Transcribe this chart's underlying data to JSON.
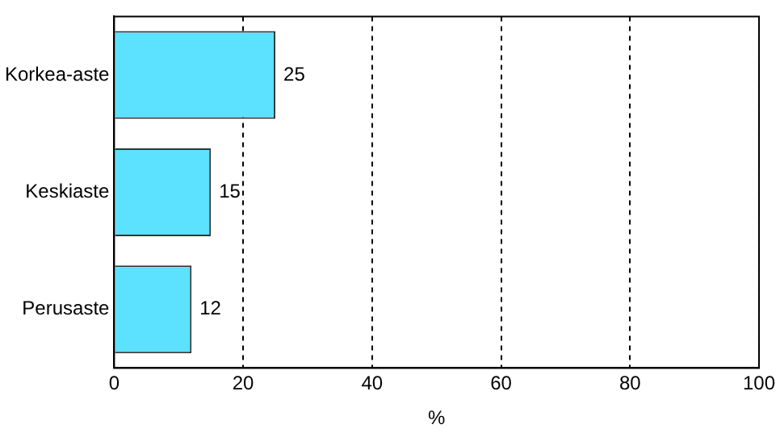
{
  "chart_data": {
    "type": "bar",
    "orientation": "horizontal",
    "xlabel": "%",
    "categories": [
      "Korkea-aste",
      "Keskiaste",
      "Perusaste"
    ],
    "values": [
      25,
      15,
      12
    ],
    "color": "#5ce1ff",
    "xlim": [
      0,
      100
    ],
    "xticks": [
      0,
      20,
      40,
      60,
      80,
      100
    ],
    "grid": "x",
    "line_style": "dashed",
    "data_labels": true
  }
}
